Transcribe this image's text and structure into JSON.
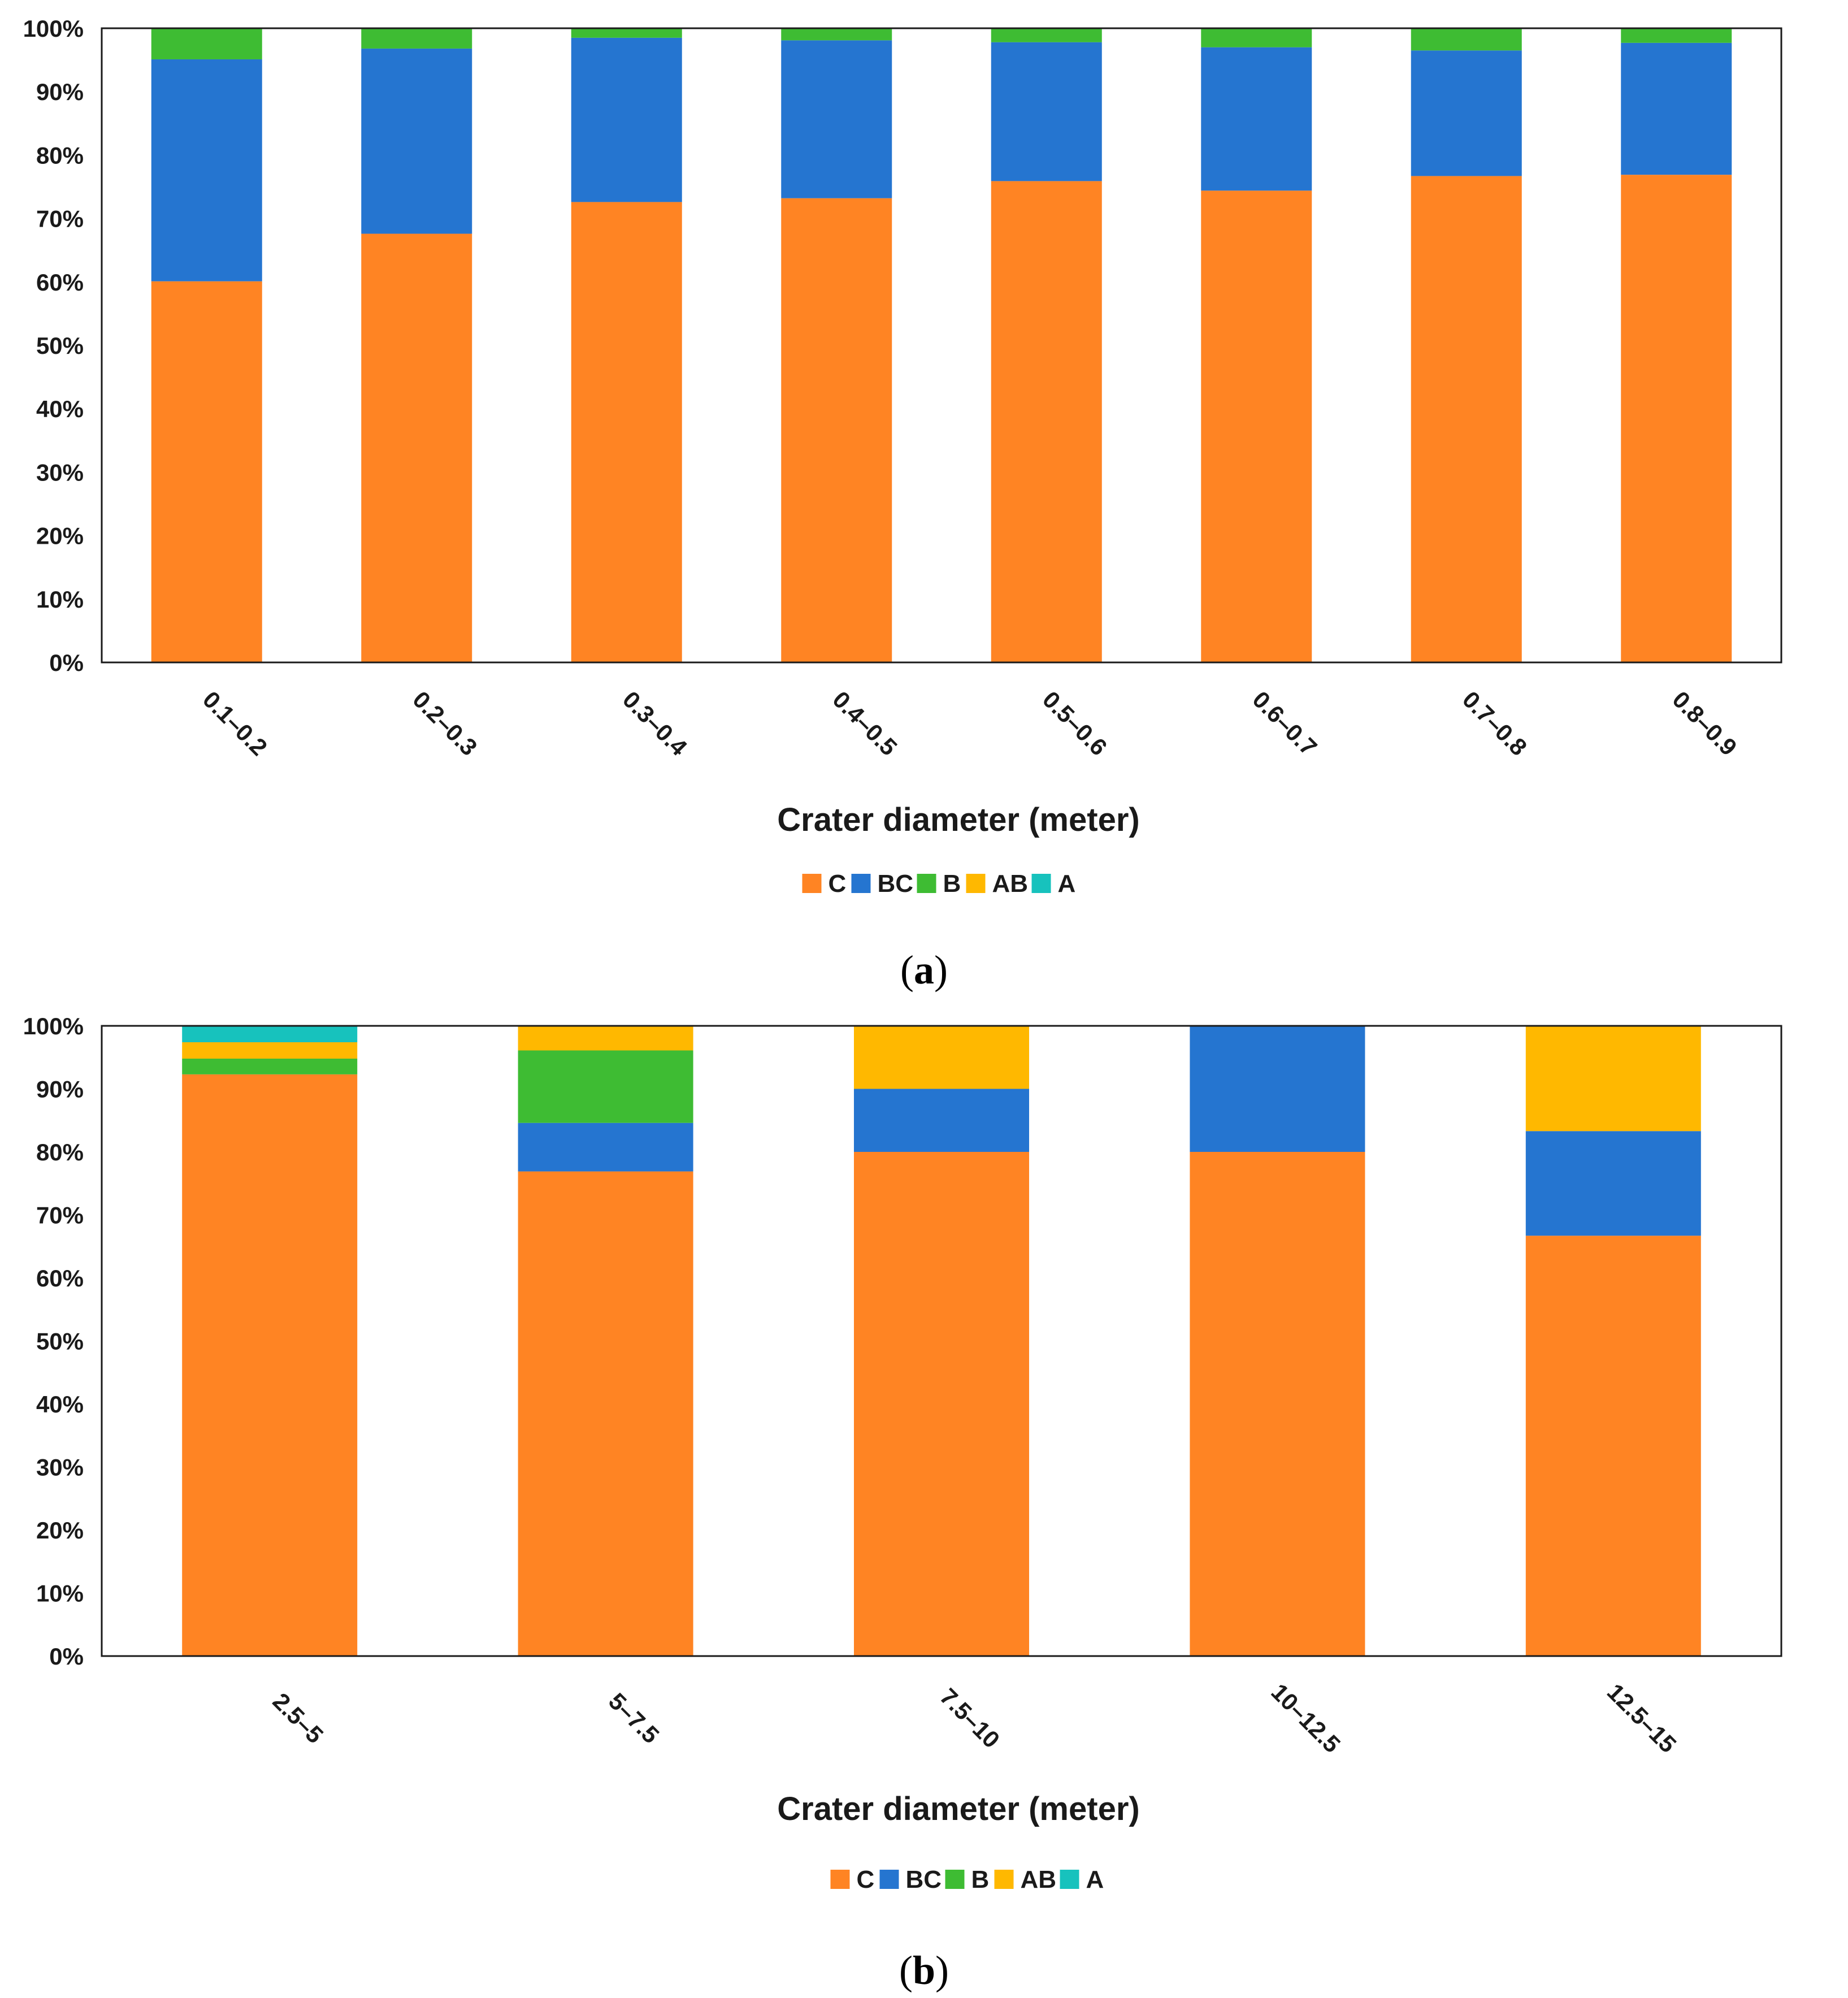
{
  "colors": {
    "C": "#FF8423",
    "BC": "#2575D0",
    "B": "#3EBC33",
    "AB": "#FFB800",
    "A": "#17C2BD",
    "axis": "#1a1a1a"
  },
  "chart_data": [
    {
      "type": "bar",
      "stacked": true,
      "panel_label": "a",
      "title": "",
      "xlabel": "Crater diameter (meter)",
      "ylabel": "",
      "ylim": [
        0,
        100
      ],
      "yticks": [
        "0%",
        "10%",
        "20%",
        "30%",
        "40%",
        "50%",
        "60%",
        "70%",
        "80%",
        "90%",
        "100%"
      ],
      "legend_position": "bottom-center",
      "categories": [
        "0.1–0.2",
        "0.2–0.3",
        "0.3–0.4",
        "0.4–0.5",
        "0.5–0.6",
        "0.6–0.7",
        "0.7–0.8",
        "0.8–0.9"
      ],
      "series": [
        {
          "name": "C",
          "values": [
            60.1,
            67.6,
            72.6,
            73.2,
            75.9,
            74.4,
            76.7,
            76.9
          ]
        },
        {
          "name": "BC",
          "values": [
            35.0,
            29.2,
            25.9,
            24.9,
            21.9,
            22.6,
            19.8,
            20.8
          ]
        },
        {
          "name": "B",
          "values": [
            4.9,
            3.2,
            1.5,
            1.9,
            2.2,
            3.0,
            3.5,
            2.3
          ]
        },
        {
          "name": "AB",
          "values": [
            0,
            0,
            0,
            0,
            0,
            0,
            0,
            0
          ]
        },
        {
          "name": "A",
          "values": [
            0,
            0,
            0,
            0,
            0,
            0,
            0,
            0
          ]
        }
      ]
    },
    {
      "type": "bar",
      "stacked": true,
      "panel_label": "b",
      "title": "",
      "xlabel": "Crater diameter (meter)",
      "ylabel": "",
      "ylim": [
        0,
        100
      ],
      "yticks": [
        "0%",
        "10%",
        "20%",
        "30%",
        "40%",
        "50%",
        "60%",
        "70%",
        "80%",
        "90%",
        "100%"
      ],
      "legend_position": "bottom-center",
      "categories": [
        "2.5–5",
        "5–7.5",
        "7.5–10",
        "10–12.5",
        "12.5–15"
      ],
      "series": [
        {
          "name": "C",
          "values": [
            92.3,
            76.9,
            80.0,
            80.0,
            66.7
          ]
        },
        {
          "name": "BC",
          "values": [
            0,
            7.7,
            10.0,
            20.0,
            16.6
          ]
        },
        {
          "name": "B",
          "values": [
            2.5,
            11.5,
            0,
            0,
            0
          ]
        },
        {
          "name": "AB",
          "values": [
            2.6,
            3.9,
            10.0,
            0,
            16.7
          ]
        },
        {
          "name": "A",
          "values": [
            2.6,
            0,
            0,
            0,
            0
          ]
        }
      ]
    }
  ]
}
